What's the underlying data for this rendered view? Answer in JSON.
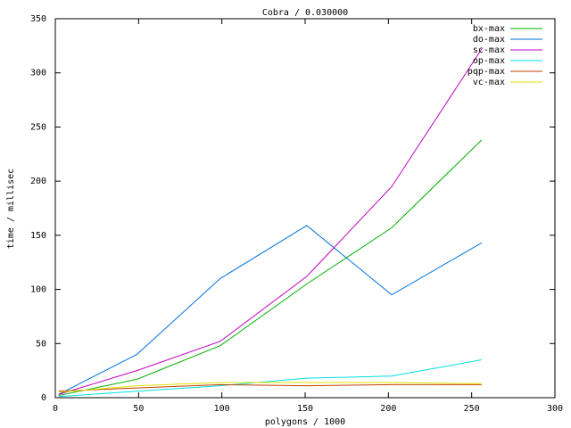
{
  "chart_data": {
    "type": "line",
    "title": "Cobra / 0.030000",
    "x_label": "polygons / 1000",
    "y_label": "time / millisec",
    "x": [
      2,
      49,
      99,
      151,
      202,
      256
    ],
    "series": [
      {
        "name": "bx-max",
        "color": "#00b000",
        "values": [
          2,
          17,
          48,
          105,
          157,
          238
        ]
      },
      {
        "name": "do-max",
        "color": "#0070e0",
        "values": [
          3,
          40,
          110,
          159,
          95,
          143
        ]
      },
      {
        "name": "sc-max",
        "color": "#c000c0",
        "values": [
          3,
          25,
          52,
          112,
          195,
          322
        ]
      },
      {
        "name": "op-max",
        "color": "#00e0e0",
        "values": [
          1,
          6,
          11,
          18,
          20,
          35
        ]
      },
      {
        "name": "pqp-max",
        "color": "#c04000",
        "values": [
          6,
          9,
          12,
          11,
          12,
          12
        ]
      },
      {
        "name": "vc-max",
        "color": "#e0e000",
        "values": [
          5,
          11,
          14,
          14,
          14,
          13
        ]
      }
    ],
    "xlim": [
      0,
      300
    ],
    "xticks": [
      0,
      50,
      100,
      150,
      200,
      250,
      300
    ],
    "ylim": [
      0,
      350
    ],
    "yticks": [
      0,
      50,
      100,
      150,
      200,
      250,
      300,
      350
    ],
    "legend": "top-right",
    "grid": false
  }
}
